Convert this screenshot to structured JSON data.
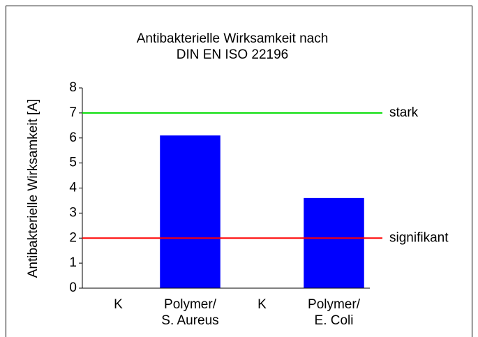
{
  "chart_data": {
    "type": "bar",
    "title": "Antibakterielle Wirksamkeit nach\nDIN EN ISO 22196",
    "y_label": "Antibakterielle Wirksamkeit [A]",
    "categories": [
      "K",
      "Polymer/\nS. Aureus",
      "K",
      "Polymer/\nE. Coli"
    ],
    "values": [
      0,
      6.1,
      0,
      3.6
    ],
    "color": "#0000ff",
    "ylim": [
      0,
      8
    ],
    "yticks": [
      0,
      1,
      2,
      3,
      4,
      5,
      6,
      7,
      8
    ],
    "reference_lines": [
      {
        "value": 7,
        "label": "stark",
        "color": "#00dd00"
      },
      {
        "value": 2,
        "label": "signifikant",
        "color": "#ff0000"
      }
    ]
  }
}
